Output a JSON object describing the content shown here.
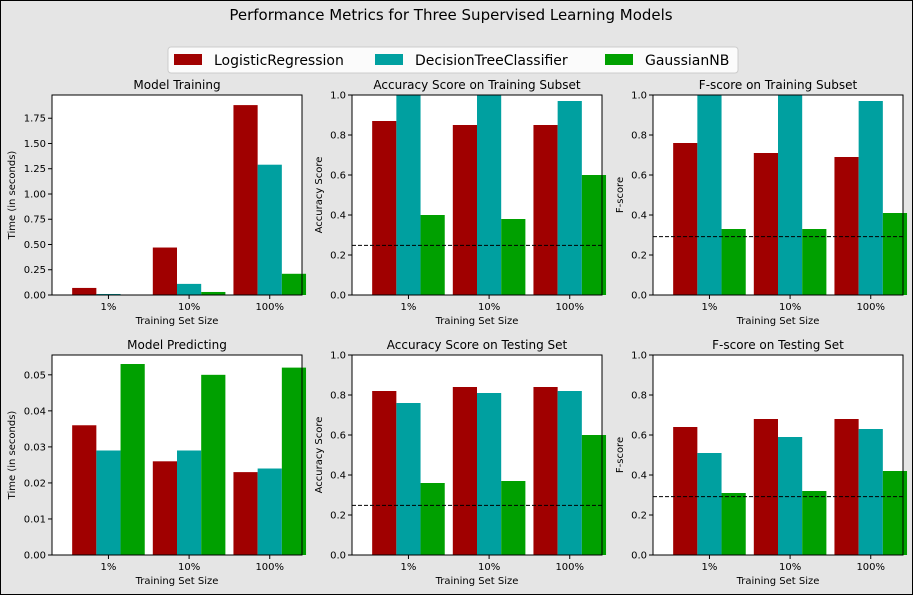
{
  "title": "Performance Metrics for Three Supervised Learning Models",
  "colors": {
    "LogisticRegression": "#a00000",
    "DecisionTreeClassifier": "#00a0a0",
    "GaussianNB": "#00a000"
  },
  "legend": {
    "placement": "top-center",
    "items": [
      "LogisticRegression",
      "DecisionTreeClassifier",
      "GaussianNB"
    ]
  },
  "chart_data": [
    {
      "type": "bar",
      "title": "Model Training",
      "xlabel": "Training Set Size",
      "ylabel": "Time (in seconds)",
      "categories": [
        "1%",
        "10%",
        "100%"
      ],
      "ylim": [
        0,
        1.98
      ],
      "yticks": [
        "0.00",
        "0.25",
        "0.50",
        "0.75",
        "1.00",
        "1.25",
        "1.50",
        "1.75"
      ],
      "series": [
        {
          "name": "LogisticRegression",
          "values": [
            0.07,
            0.47,
            1.88
          ]
        },
        {
          "name": "DecisionTreeClassifier",
          "values": [
            0.01,
            0.11,
            1.29
          ]
        },
        {
          "name": "GaussianNB",
          "values": [
            0.0,
            0.03,
            0.21
          ]
        }
      ]
    },
    {
      "type": "bar",
      "title": "Accuracy Score on Training Subset",
      "xlabel": "Training Set Size",
      "ylabel": "Accuracy Score",
      "categories": [
        "1%",
        "10%",
        "100%"
      ],
      "ylim": [
        0,
        1.0
      ],
      "yticks": [
        "0.0",
        "0.2",
        "0.4",
        "0.6",
        "0.8",
        "1.0"
      ],
      "baseline": 0.248,
      "series": [
        {
          "name": "LogisticRegression",
          "values": [
            0.87,
            0.85,
            0.85
          ]
        },
        {
          "name": "DecisionTreeClassifier",
          "values": [
            1.0,
            1.0,
            0.97
          ]
        },
        {
          "name": "GaussianNB",
          "values": [
            0.4,
            0.38,
            0.6
          ]
        }
      ]
    },
    {
      "type": "bar",
      "title": "F-score on Training Subset",
      "xlabel": "Training Set Size",
      "ylabel": "F-score",
      "categories": [
        "1%",
        "10%",
        "100%"
      ],
      "ylim": [
        0,
        1.0
      ],
      "yticks": [
        "0.0",
        "0.2",
        "0.4",
        "0.6",
        "0.8",
        "1.0"
      ],
      "baseline": 0.292,
      "series": [
        {
          "name": "LogisticRegression",
          "values": [
            0.76,
            0.71,
            0.69
          ]
        },
        {
          "name": "DecisionTreeClassifier",
          "values": [
            1.0,
            1.0,
            0.97
          ]
        },
        {
          "name": "GaussianNB",
          "values": [
            0.33,
            0.33,
            0.41
          ]
        }
      ]
    },
    {
      "type": "bar",
      "title": "Model Predicting",
      "xlabel": "Training Set Size",
      "ylabel": "Time (in seconds)",
      "categories": [
        "1%",
        "10%",
        "100%"
      ],
      "ylim": [
        0,
        0.0555
      ],
      "yticks": [
        "0.00",
        "0.01",
        "0.02",
        "0.03",
        "0.04",
        "0.05"
      ],
      "series": [
        {
          "name": "LogisticRegression",
          "values": [
            0.036,
            0.026,
            0.023
          ]
        },
        {
          "name": "DecisionTreeClassifier",
          "values": [
            0.029,
            0.029,
            0.024
          ]
        },
        {
          "name": "GaussianNB",
          "values": [
            0.053,
            0.05,
            0.052
          ]
        }
      ]
    },
    {
      "type": "bar",
      "title": "Accuracy Score on Testing Set",
      "xlabel": "Training Set Size",
      "ylabel": "Accuracy Score",
      "categories": [
        "1%",
        "10%",
        "100%"
      ],
      "ylim": [
        0,
        1.0
      ],
      "yticks": [
        "0.0",
        "0.2",
        "0.4",
        "0.6",
        "0.8",
        "1.0"
      ],
      "baseline": 0.248,
      "series": [
        {
          "name": "LogisticRegression",
          "values": [
            0.82,
            0.84,
            0.84
          ]
        },
        {
          "name": "DecisionTreeClassifier",
          "values": [
            0.76,
            0.81,
            0.82
          ]
        },
        {
          "name": "GaussianNB",
          "values": [
            0.36,
            0.37,
            0.6
          ]
        }
      ]
    },
    {
      "type": "bar",
      "title": "F-score on Testing Set",
      "xlabel": "Training Set Size",
      "ylabel": "F-score",
      "categories": [
        "1%",
        "10%",
        "100%"
      ],
      "ylim": [
        0,
        1.0
      ],
      "yticks": [
        "0.0",
        "0.2",
        "0.4",
        "0.6",
        "0.8",
        "1.0"
      ],
      "baseline": 0.292,
      "series": [
        {
          "name": "LogisticRegression",
          "values": [
            0.64,
            0.68,
            0.68
          ]
        },
        {
          "name": "DecisionTreeClassifier",
          "values": [
            0.51,
            0.59,
            0.63
          ]
        },
        {
          "name": "GaussianNB",
          "values": [
            0.31,
            0.32,
            0.42
          ]
        }
      ]
    }
  ]
}
